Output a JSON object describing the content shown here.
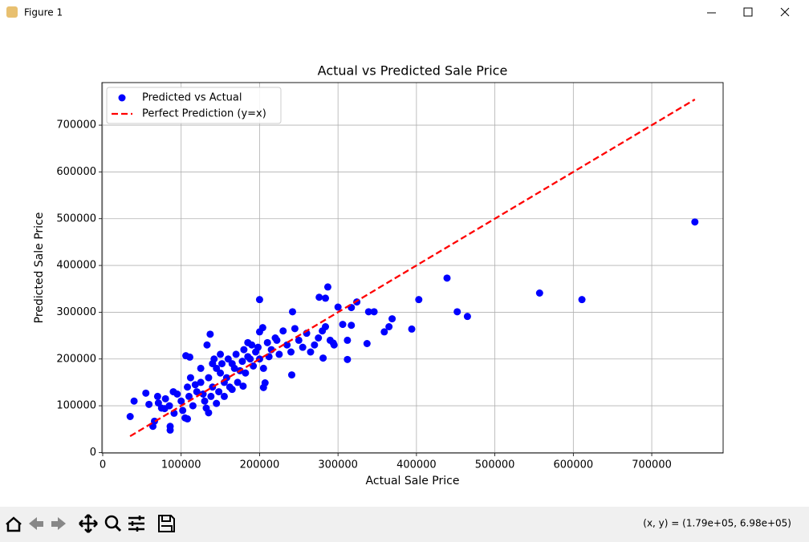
{
  "window": {
    "title": "Figure 1",
    "status": "(x, y) = (1.79e+05, 6.98e+05)"
  },
  "chart_data": {
    "type": "scatter",
    "title": "Actual vs Predicted Sale Price",
    "x_label": "Actual Sale Price",
    "y_label": "Predicted Sale Price",
    "xlim": [
      -1000,
      791000
    ],
    "ylim": [
      -1000,
      791000
    ],
    "xticks": [
      0,
      100000,
      200000,
      300000,
      400000,
      500000,
      600000,
      700000
    ],
    "yticks": [
      0,
      100000,
      200000,
      300000,
      400000,
      500000,
      600000,
      700000
    ],
    "grid": true,
    "legend": "upper left",
    "series": [
      {
        "name": "Predicted vs Actual",
        "color": "#0000ff",
        "x": [
          755000,
          611000,
          557000,
          465000,
          452000,
          439000,
          403000,
          394000,
          369000,
          365000,
          359000,
          346000,
          339000,
          337000,
          324000,
          317000,
          317000,
          312000,
          312000,
          306000,
          300000,
          287000,
          284000,
          276000,
          284000,
          294000,
          281000,
          242000,
          241000,
          200000,
          204000,
          200000,
          207000,
          205000,
          179000,
          137000,
          111000,
          106000,
          105000,
          108000,
          86000,
          86000,
          64000,
          66000,
          35000,
          40000,
          55000,
          59000,
          71000,
          79000,
          91000,
          120000,
          125000,
          130000,
          135000,
          140000,
          145000,
          150000,
          155000,
          160000,
          165000,
          170000,
          175000,
          180000,
          185000,
          190000,
          195000,
          110000,
          115000,
          118000,
          128000,
          132000,
          138000,
          142000,
          148000,
          152000,
          158000,
          162000,
          168000,
          172000,
          178000,
          182000,
          188000,
          192000,
          198000,
          102000,
          108000,
          112000,
          100000,
          95000,
          90000,
          85000,
          80000,
          75000,
          70000,
          210000,
          215000,
          220000,
          225000,
          230000,
          235000,
          240000,
          245000,
          250000,
          255000,
          260000,
          265000,
          270000,
          275000,
          280000,
          290000,
          295000,
          150000,
          155000,
          165000,
          145000,
          135000,
          125000,
          133000,
          140000,
          185000,
          200000,
          205000,
          212000,
          222000
        ],
        "values": [
          493000,
          327000,
          341000,
          291000,
          301000,
          373000,
          327000,
          264000,
          286000,
          269000,
          258000,
          301000,
          301000,
          233000,
          322000,
          310000,
          272000,
          199000,
          240000,
          274000,
          311000,
          354000,
          330000,
          332000,
          269000,
          234000,
          202000,
          301000,
          166000,
          327000,
          267000,
          258000,
          149000,
          139000,
          142000,
          253000,
          204000,
          207000,
          74000,
          72000,
          48000,
          56000,
          56000,
          67000,
          77000,
          110000,
          127000,
          103000,
          106000,
          94000,
          84000,
          130000,
          150000,
          110000,
          160000,
          140000,
          180000,
          170000,
          150000,
          200000,
          190000,
          210000,
          175000,
          220000,
          205000,
          230000,
          215000,
          120000,
          100000,
          145000,
          125000,
          95000,
          120000,
          200000,
          130000,
          190000,
          160000,
          140000,
          180000,
          150000,
          195000,
          170000,
          200000,
          185000,
          225000,
          90000,
          140000,
          160000,
          110000,
          125000,
          130000,
          100000,
          115000,
          95000,
          120000,
          235000,
          220000,
          245000,
          210000,
          260000,
          230000,
          215000,
          265000,
          240000,
          225000,
          255000,
          215000,
          230000,
          245000,
          260000,
          240000,
          230000,
          210000,
          120000,
          135000,
          105000,
          85000,
          180000,
          230000,
          190000,
          235000,
          200000,
          180000,
          205000,
          240000
        ]
      },
      {
        "name": "Perfect Prediction (y=x)",
        "color": "#ff0000",
        "type": "line",
        "style": "dashed",
        "x": [
          34900,
          755000
        ],
        "values": [
          34900,
          755000
        ]
      }
    ]
  }
}
